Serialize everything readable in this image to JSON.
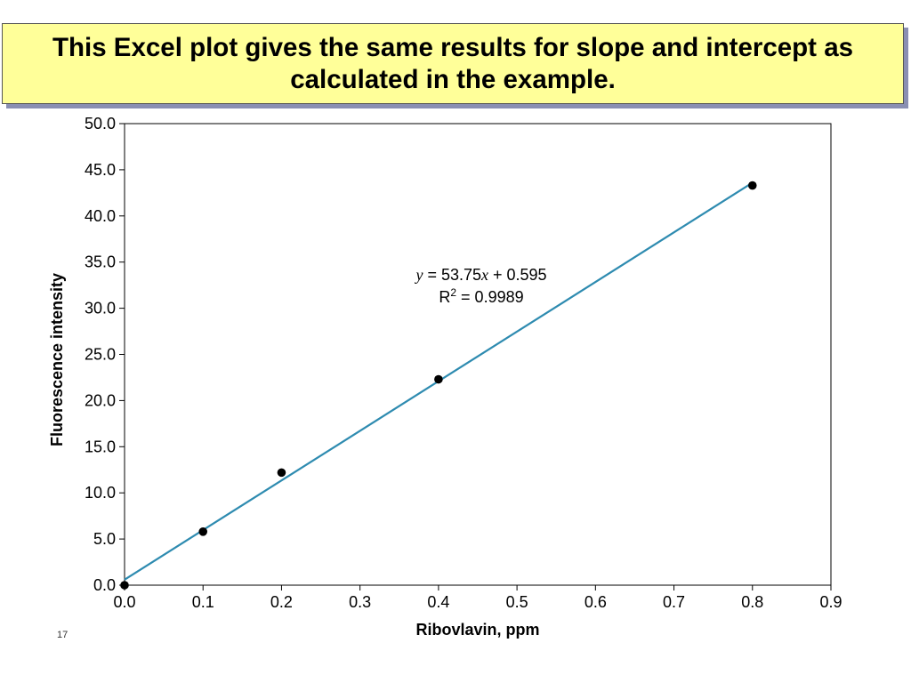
{
  "slide": {
    "title": "This Excel plot gives the same results for slope and intercept as calculated in the example.",
    "slide_number": "17"
  },
  "colors": {
    "title_background": "#ffff99",
    "title_shadow": "#8a8fb2",
    "trendline": "#2e8bb0",
    "points": "#000000"
  },
  "chart_data": {
    "type": "scatter",
    "xlabel": "Ribovlavin, ppm",
    "ylabel": "Fluorescence intensity",
    "xlim": [
      0.0,
      0.9
    ],
    "ylim": [
      0.0,
      50.0
    ],
    "x_ticks": [
      "0.0",
      "0.1",
      "0.2",
      "0.3",
      "0.4",
      "0.5",
      "0.6",
      "0.7",
      "0.8",
      "0.9"
    ],
    "y_ticks": [
      "0.0",
      "5.0",
      "10.0",
      "15.0",
      "20.0",
      "25.0",
      "30.0",
      "35.0",
      "40.0",
      "45.0",
      "50.0"
    ],
    "grid": false,
    "legend": "none",
    "series": [
      {
        "x": [
          0.0,
          0.1,
          0.2,
          0.4,
          0.8
        ],
        "y": [
          0.0,
          5.8,
          12.2,
          22.3,
          43.3
        ]
      }
    ],
    "trendline": {
      "slope": 53.75,
      "intercept": 0.595,
      "x_start": 0.0,
      "x_end": 0.8
    },
    "equation": {
      "y_var": "y",
      "equals_slope": " = 53.75",
      "x_var": "x",
      "plus_intercept": " + 0.595",
      "r_label": "R",
      "r_exponent": "2",
      "r_value": " = 0.9989"
    }
  }
}
